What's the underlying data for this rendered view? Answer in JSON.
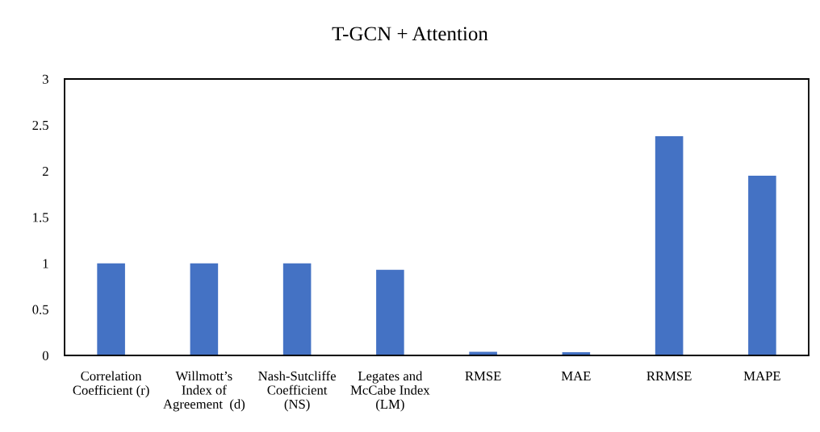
{
  "chart_data": {
    "type": "bar",
    "title": "T-GCN + Attention",
    "categories": [
      "Correlation\nCoefficient (r)",
      "Willmott’s\nIndex of\nAgreement  (d)",
      "Nash-Sutcliffe\nCoefficient\n(NS)",
      "Legates and\nMcCabe Index\n(LM)",
      "RMSE",
      "MAE",
      "RRMSE",
      "MAPE"
    ],
    "values": [
      1.0,
      1.0,
      1.0,
      0.93,
      0.04,
      0.035,
      2.38,
      1.95
    ],
    "color": "#4472c4",
    "ylim": [
      0,
      3
    ],
    "yticks": [
      0,
      0.5,
      1,
      1.5,
      2,
      2.5,
      3
    ],
    "grid": false
  }
}
